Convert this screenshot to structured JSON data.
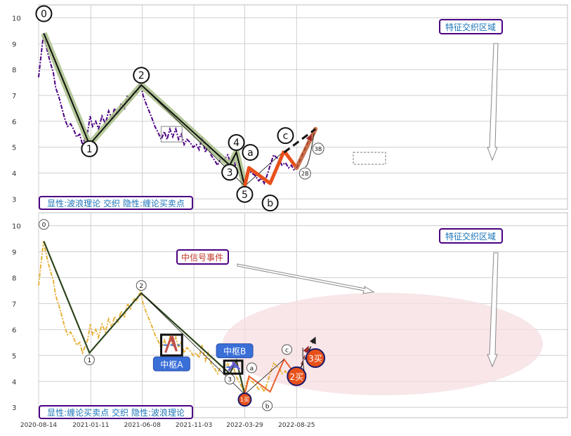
{
  "colors": {
    "plot_bg": "#ffffff",
    "grid": "#cfcfcf",
    "frame": "#bdbdbd",
    "price_top": "#4b0082",
    "price_bottom": "#e8b23a",
    "wave_band": "#a9bf8a",
    "wave_line": "#111111",
    "orange": "#e8501a",
    "copper": "#c8704a",
    "zone_fill": "#f6dde2",
    "box_border": "#4b0082",
    "callout_text": "#1a73b8",
    "signal_text": "#c0392b",
    "hub_fill": "#3a6fd8",
    "buy_fill": "#e8501a"
  },
  "chart_data": [
    {
      "type": "line",
      "panel": "top",
      "ylim": [
        2.6,
        10.5
      ],
      "yticks": [
        3,
        4,
        5,
        6,
        7,
        8,
        9,
        10
      ],
      "caption": "显性:波浪理论 交织 隐性:缠论买卖点",
      "callout": "特征交织区域",
      "price": [
        [
          "2020-08-14",
          7.7
        ],
        [
          "2020-08-18",
          8.2
        ],
        [
          "2020-08-24",
          8.9
        ],
        [
          "2020-08-28",
          9.4
        ],
        [
          "2020-09-03",
          9.0
        ],
        [
          "2020-09-10",
          8.6
        ],
        [
          "2020-09-18",
          8.2
        ],
        [
          "2020-09-25",
          7.9
        ],
        [
          "2020-10-02",
          7.3
        ],
        [
          "2020-10-12",
          6.9
        ],
        [
          "2020-10-20",
          6.5
        ],
        [
          "2020-10-28",
          6.1
        ],
        [
          "2020-11-05",
          5.8
        ],
        [
          "2020-11-14",
          5.9
        ],
        [
          "2020-11-22",
          5.7
        ],
        [
          "2020-12-01",
          5.4
        ],
        [
          "2020-12-10",
          5.5
        ],
        [
          "2020-12-18",
          5.1
        ],
        [
          "2020-12-24",
          5.3
        ],
        [
          "2021-01-02",
          5.6
        ],
        [
          "2021-01-09",
          6.2
        ],
        [
          "2021-01-16",
          5.8
        ],
        [
          "2021-01-25",
          6.0
        ],
        [
          "2021-02-02",
          5.7
        ],
        [
          "2021-02-12",
          6.2
        ],
        [
          "2021-02-22",
          5.9
        ],
        [
          "2021-03-03",
          6.4
        ],
        [
          "2021-03-12",
          6.1
        ],
        [
          "2021-03-20",
          6.5
        ],
        [
          "2021-03-30",
          6.3
        ],
        [
          "2021-04-08",
          6.7
        ],
        [
          "2021-04-18",
          6.5
        ],
        [
          "2021-04-26",
          7.0
        ],
        [
          "2021-05-05",
          6.8
        ],
        [
          "2021-05-14",
          7.2
        ],
        [
          "2021-05-24",
          7.1
        ],
        [
          "2021-06-02",
          7.5
        ],
        [
          "2021-06-10",
          7.0
        ],
        [
          "2021-06-18",
          6.7
        ],
        [
          "2021-06-27",
          6.4
        ],
        [
          "2021-07-06",
          6.1
        ],
        [
          "2021-07-14",
          5.8
        ],
        [
          "2021-07-22",
          5.6
        ],
        [
          "2021-08-01",
          5.3
        ],
        [
          "2021-08-10",
          5.6
        ],
        [
          "2021-08-18",
          5.3
        ],
        [
          "2021-08-26",
          5.7
        ],
        [
          "2021-09-03",
          5.4
        ],
        [
          "2021-09-12",
          5.7
        ],
        [
          "2021-09-20",
          5.3
        ],
        [
          "2021-09-28",
          5.5
        ],
        [
          "2021-10-06",
          5.1
        ],
        [
          "2021-10-14",
          5.3
        ],
        [
          "2021-10-22",
          5.2
        ],
        [
          "2021-11-01",
          5.0
        ],
        [
          "2021-11-10",
          5.1
        ],
        [
          "2021-11-18",
          4.9
        ],
        [
          "2021-11-26",
          5.4
        ],
        [
          "2021-12-06",
          4.8
        ],
        [
          "2021-12-14",
          5.1
        ],
        [
          "2021-12-22",
          4.7
        ],
        [
          "2022-01-01",
          4.5
        ],
        [
          "2022-01-10",
          4.3
        ],
        [
          "2022-01-20",
          4.6
        ],
        [
          "2022-01-28",
          4.5
        ],
        [
          "2022-02-08",
          4.7
        ],
        [
          "2022-02-16",
          4.4
        ],
        [
          "2022-02-24",
          4.6
        ],
        [
          "2022-03-04",
          4.2
        ],
        [
          "2022-03-12",
          4.0
        ],
        [
          "2022-03-20",
          3.8
        ],
        [
          "2022-03-26",
          3.6
        ],
        [
          "2022-04-02",
          3.9
        ],
        [
          "2022-04-10",
          4.1
        ],
        [
          "2022-04-18",
          4.0
        ],
        [
          "2022-04-28",
          3.9
        ],
        [
          "2022-05-08",
          3.7
        ],
        [
          "2022-05-16",
          3.8
        ],
        [
          "2022-05-24",
          3.6
        ],
        [
          "2022-06-01",
          3.9
        ],
        [
          "2022-06-10",
          4.3
        ],
        [
          "2022-06-20",
          4.7
        ],
        [
          "2022-06-28",
          4.6
        ],
        [
          "2022-07-06",
          4.5
        ],
        [
          "2022-07-14",
          4.3
        ],
        [
          "2022-07-24",
          4.4
        ],
        [
          "2022-08-02",
          4.2
        ],
        [
          "2022-08-10",
          4.3
        ],
        [
          "2022-08-18",
          4.1
        ],
        [
          "2022-08-26",
          4.3
        ]
      ],
      "wave_points": [
        {
          "label": "0",
          "date": "2020-08-29",
          "value": 9.4
        },
        {
          "label": "1",
          "date": "2021-01-07",
          "value": 5.1
        },
        {
          "label": "2",
          "date": "2021-06-05",
          "value": 7.4
        },
        {
          "label": "3",
          "date": "2022-02-14",
          "value": 4.3
        },
        {
          "label": "4",
          "date": "2022-03-05",
          "value": 4.8
        },
        {
          "label": "5",
          "date": "2022-03-29",
          "value": 3.5
        },
        {
          "label": "a",
          "date": "2022-04-10",
          "value": 4.2
        },
        {
          "label": "b",
          "date": "2022-06-10",
          "value": 3.6
        },
        {
          "label": "c",
          "date": "2022-07-20",
          "value": 4.85
        },
        {
          "label": "2B",
          "date": "2022-08-25",
          "value": 4.2
        },
        {
          "label": "3B",
          "date": "2022-10-18",
          "value": 5.7
        }
      ],
      "hub": {
        "x_from": "2021-08-01",
        "x_to": "2021-09-30",
        "y_low": 5.2,
        "y_high": 5.8
      }
    },
    {
      "type": "line",
      "panel": "bottom",
      "ylim": [
        2.6,
        10.5
      ],
      "yticks": [
        3,
        4,
        5,
        6,
        7,
        8,
        9,
        10
      ],
      "caption": "显性:缠论买卖点 交织 隐性:波浪理论",
      "callout": "特征交织区域",
      "signal": "中信号事件",
      "hubs": [
        {
          "label": "中枢A",
          "x_from": "2021-08-01",
          "x_to": "2021-09-30",
          "y_low": 5.0,
          "y_high": 5.8
        },
        {
          "label": "中枢B",
          "x_from": "2022-01-29",
          "x_to": "2022-03-22",
          "y_low": 4.3,
          "y_high": 4.8
        }
      ],
      "buy_points": [
        {
          "label": "1买",
          "date": "2022-03-29",
          "value": 3.3
        },
        {
          "label": "2买",
          "date": "2022-08-25",
          "value": 4.2
        },
        {
          "label": "3买",
          "date": "2022-10-18",
          "value": 4.9
        }
      ],
      "x_ticks": [
        "2020-08-14",
        "2021-01-11",
        "2021-06-08",
        "2021-11-03",
        "2022-03-29",
        "2022-08-25"
      ]
    }
  ]
}
